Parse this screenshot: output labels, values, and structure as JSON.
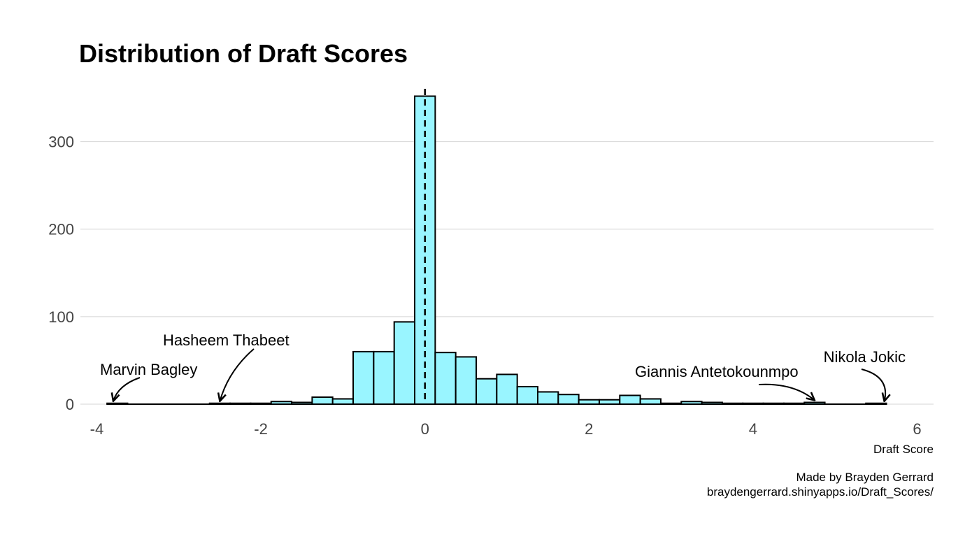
{
  "chart_data": {
    "type": "bar",
    "title": "Distribution of Draft Scores",
    "xlabel": "Draft Score",
    "ylabel": "",
    "xlim": [
      -4.2,
      6.2
    ],
    "ylim": [
      -8,
      362
    ],
    "x_ticks": [
      -4,
      -2,
      0,
      2,
      4,
      6
    ],
    "y_ticks": [
      0,
      100,
      200,
      300
    ],
    "x_tick_labels": [
      "-4",
      "-2",
      "0",
      "2",
      "4",
      "6"
    ],
    "y_tick_labels": [
      "0",
      "100",
      "200",
      "300"
    ],
    "grid": "horizontal major",
    "legend": "none",
    "bar_fill": "#99f5ff",
    "bar_stroke": "#000000",
    "grid_color": "#d4d4d4",
    "bin_width": 0.25,
    "bins": [
      {
        "start": -3.875,
        "count": 1
      },
      {
        "start": -3.625,
        "count": 0
      },
      {
        "start": -3.375,
        "count": 0
      },
      {
        "start": -3.125,
        "count": 0
      },
      {
        "start": -2.875,
        "count": 0
      },
      {
        "start": -2.625,
        "count": 1
      },
      {
        "start": -2.375,
        "count": 1
      },
      {
        "start": -2.125,
        "count": 1
      },
      {
        "start": -1.875,
        "count": 3
      },
      {
        "start": -1.625,
        "count": 2
      },
      {
        "start": -1.375,
        "count": 8
      },
      {
        "start": -1.125,
        "count": 6
      },
      {
        "start": -0.875,
        "count": 60
      },
      {
        "start": -0.625,
        "count": 60
      },
      {
        "start": -0.375,
        "count": 94
      },
      {
        "start": -0.125,
        "count": 352
      },
      {
        "start": 0.125,
        "count": 59
      },
      {
        "start": 0.375,
        "count": 54
      },
      {
        "start": 0.625,
        "count": 29
      },
      {
        "start": 0.875,
        "count": 34
      },
      {
        "start": 1.125,
        "count": 20
      },
      {
        "start": 1.375,
        "count": 14
      },
      {
        "start": 1.625,
        "count": 11
      },
      {
        "start": 1.875,
        "count": 5
      },
      {
        "start": 2.125,
        "count": 5
      },
      {
        "start": 2.375,
        "count": 10
      },
      {
        "start": 2.625,
        "count": 6
      },
      {
        "start": 2.875,
        "count": 1
      },
      {
        "start": 3.125,
        "count": 3
      },
      {
        "start": 3.375,
        "count": 2
      },
      {
        "start": 3.625,
        "count": 1
      },
      {
        "start": 3.875,
        "count": 1
      },
      {
        "start": 4.125,
        "count": 1
      },
      {
        "start": 4.375,
        "count": 1
      },
      {
        "start": 4.625,
        "count": 2
      },
      {
        "start": 4.875,
        "count": 0
      },
      {
        "start": 5.125,
        "count": 0
      },
      {
        "start": 5.375,
        "count": 1
      }
    ],
    "reference_line": {
      "x": 0,
      "style": "dashed"
    },
    "annotations": [
      {
        "label": "Marvin Bagley",
        "x": -3.8,
        "y": 1
      },
      {
        "label": "Hasheem Thabeet",
        "x": -2.5,
        "y": 1
      },
      {
        "label": "Giannis Antetokounmpo",
        "x": 4.75,
        "y": 2
      },
      {
        "label": "Nikola Jokic",
        "x": 5.6,
        "y": 1
      }
    ],
    "caption": [
      "Made by Brayden Gerrard",
      "braydengerrard.shinyapps.io/Draft_Scores/"
    ]
  }
}
